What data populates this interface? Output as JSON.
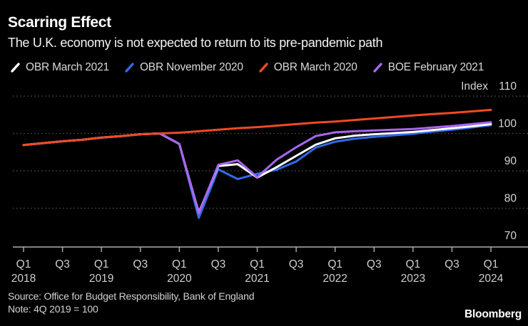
{
  "title": "Scarring Effect",
  "subtitle": "The U.K. economy is not expected to return to its pre-pandemic path",
  "axis": {
    "unit_label": "Index",
    "y_ticks": [
      110,
      100,
      90,
      80,
      70
    ],
    "x_ticks": [
      {
        "i": 0,
        "q": "Q1",
        "year": "2018"
      },
      {
        "i": 2,
        "q": "Q3"
      },
      {
        "i": 4,
        "q": "Q1",
        "year": "2019"
      },
      {
        "i": 6,
        "q": "Q3"
      },
      {
        "i": 8,
        "q": "Q1",
        "year": "2020"
      },
      {
        "i": 10,
        "q": "Q3"
      },
      {
        "i": 12,
        "q": "Q1",
        "year": "2021"
      },
      {
        "i": 14,
        "q": "Q3"
      },
      {
        "i": 16,
        "q": "Q1",
        "year": "2022"
      },
      {
        "i": 18,
        "q": "Q3"
      },
      {
        "i": 20,
        "q": "Q1",
        "year": "2023"
      },
      {
        "i": 22,
        "q": "Q3"
      },
      {
        "i": 24,
        "q": "Q1",
        "year": "2024"
      }
    ]
  },
  "chart_data": {
    "type": "line",
    "title": "Scarring Effect",
    "subtitle": "The U.K. economy is not expected to return to its pre-pandemic path",
    "ylabel": "Index",
    "ylim": [
      70,
      110
    ],
    "grid": "dotted-horizontal",
    "legend_position": "top",
    "x": [
      "Q1 2018",
      "Q2 2018",
      "Q3 2018",
      "Q4 2018",
      "Q1 2019",
      "Q2 2019",
      "Q3 2019",
      "Q4 2019",
      "Q1 2020",
      "Q2 2020",
      "Q3 2020",
      "Q4 2020",
      "Q1 2021",
      "Q2 2021",
      "Q3 2021",
      "Q4 2021",
      "Q1 2022",
      "Q2 2022",
      "Q3 2022",
      "Q4 2022",
      "Q1 2023",
      "Q2 2023",
      "Q3 2023",
      "Q4 2023",
      "Q1 2024"
    ],
    "series": [
      {
        "name": "OBR March 2021",
        "color": "#ffffff",
        "values": [
          96.9,
          97.4,
          97.9,
          98.3,
          98.9,
          99.3,
          99.8,
          100.0,
          97.2,
          78.8,
          91.3,
          91.8,
          88.2,
          91.0,
          94.0,
          97.0,
          98.7,
          99.4,
          99.8,
          100.1,
          100.4,
          100.9,
          101.4,
          101.9,
          102.5
        ]
      },
      {
        "name": "OBR November 2020",
        "color": "#2f6bea",
        "values": [
          96.9,
          97.4,
          97.9,
          98.3,
          98.9,
          99.3,
          99.8,
          100.0,
          97.2,
          77.4,
          90.4,
          87.8,
          89.2,
          90.3,
          92.5,
          96.2,
          97.8,
          98.6,
          99.1,
          99.5,
          99.9,
          100.5,
          101.0,
          101.6,
          102.2
        ]
      },
      {
        "name": "OBR March 2020",
        "color": "#ef4a23",
        "values": [
          96.9,
          97.4,
          97.9,
          98.3,
          98.9,
          99.3,
          99.8,
          100.0,
          100.2,
          100.6,
          101.0,
          101.4,
          101.7,
          102.1,
          102.5,
          102.9,
          103.2,
          103.6,
          104.0,
          104.4,
          104.8,
          105.2,
          105.5,
          105.9,
          106.3
        ]
      },
      {
        "name": "BOE February 2021",
        "color": "#a965ee",
        "values": [
          96.9,
          97.4,
          97.9,
          98.3,
          98.9,
          99.3,
          99.8,
          100.0,
          97.2,
          78.6,
          91.6,
          92.8,
          88.3,
          93.0,
          96.3,
          99.3,
          100.3,
          100.6,
          100.8,
          101.0,
          101.2,
          101.6,
          102.0,
          102.5,
          103.0
        ]
      }
    ]
  },
  "colors": {
    "background": "#000000",
    "grid": "#4f4f4f",
    "axis": "#b0b0b0",
    "tick_label": "#cfcfcf",
    "title": "#ffffff"
  },
  "footer": {
    "source": "Source: Office for Budget Responsibility, Bank of England",
    "note": "Note: 4Q 2019 = 100",
    "brand": "Bloomberg"
  }
}
